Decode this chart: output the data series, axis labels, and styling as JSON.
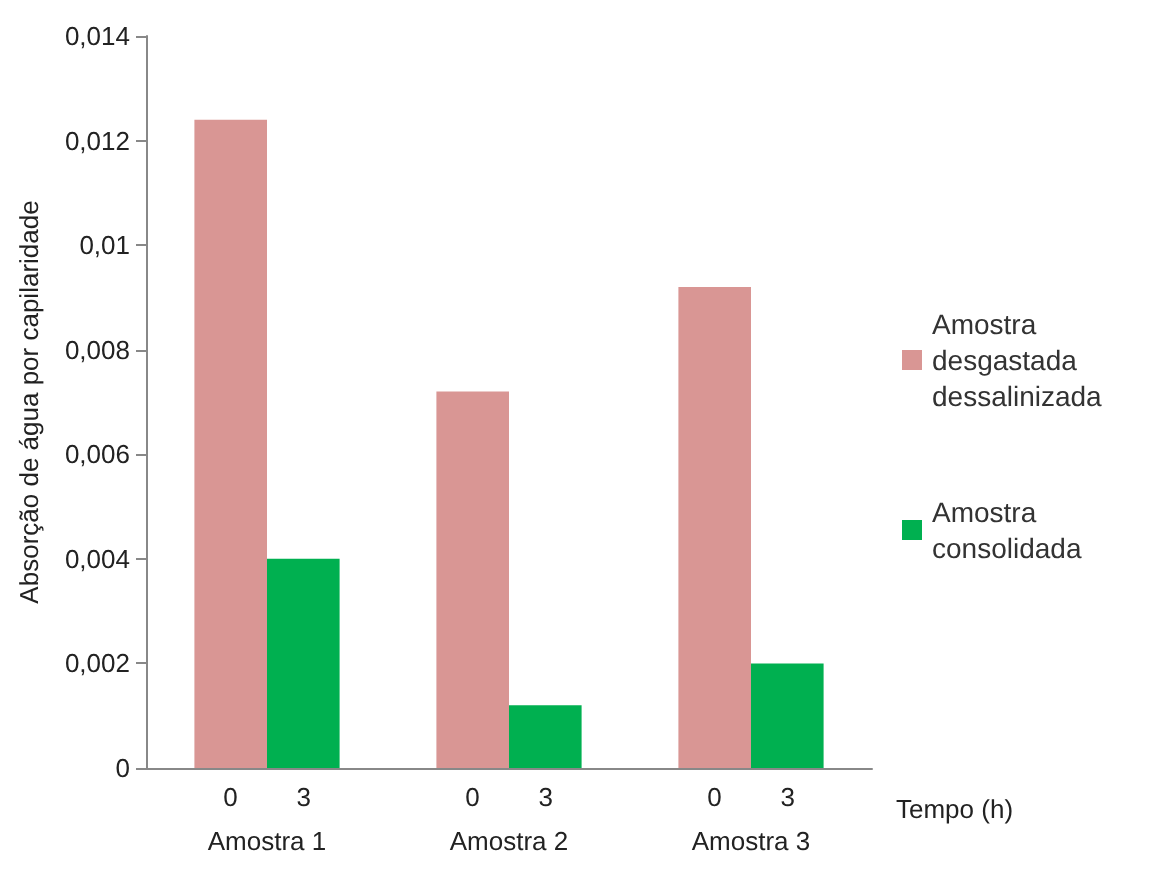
{
  "chart_data": {
    "type": "bar",
    "categories": [
      "Amostra 1",
      "Amostra 2",
      "Amostra 3"
    ],
    "series": [
      {
        "name": "Amostra desgastada dessalinizada",
        "color": "#d99694",
        "values": [
          0.0124,
          0.0072,
          0.0092
        ]
      },
      {
        "name": "Amostra consolidada",
        "color": "#00b050",
        "values": [
          0.004,
          0.0012,
          0.002
        ]
      }
    ],
    "xlabel": "Tempo (h)",
    "ylabel": "Absorção de água por capilaridade",
    "annotations": [
      "0",
      "3",
      "0",
      "3",
      "0",
      "3"
    ],
    "ylim": [
      0,
      0.014
    ],
    "yticks": [
      0,
      {
        "value": 0.002,
        "label": "0,002"
      },
      {
        "value": 0.004,
        "label": "0,004"
      },
      {
        "value": 0.006,
        "label": "0,006"
      },
      {
        "value": 0.008,
        "label": "0,008"
      },
      {
        "value": 0.01,
        "label": "0,01"
      },
      {
        "value": 0.012,
        "label": "0,012"
      },
      {
        "value": 0.014,
        "label": "0,014"
      }
    ],
    "grid": false,
    "legend": "right"
  }
}
